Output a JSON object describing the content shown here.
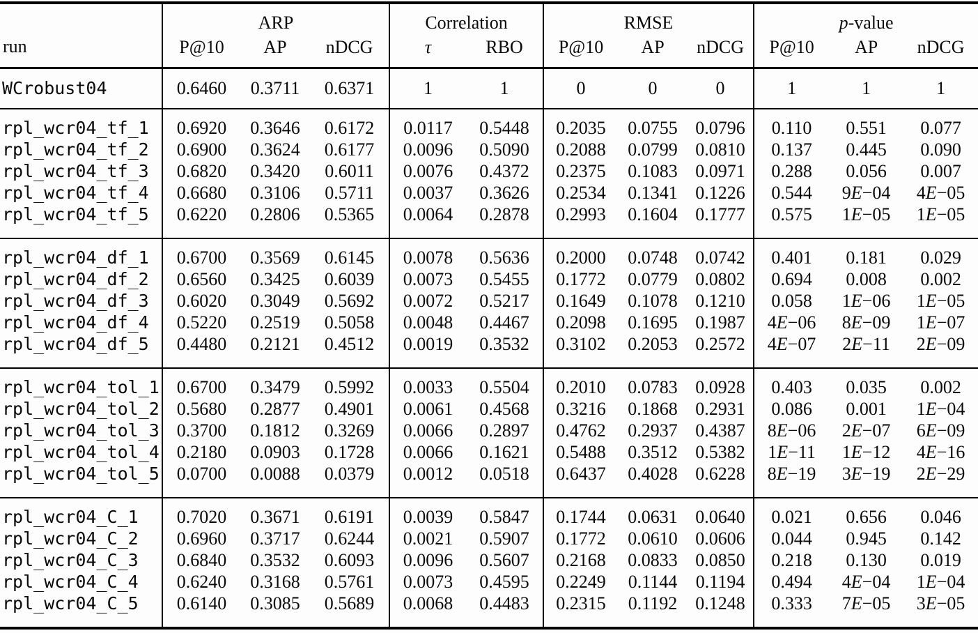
{
  "header": {
    "run_label": "run",
    "groups": [
      {
        "label": "ARP",
        "cols": [
          "P@10",
          "AP",
          "nDCG"
        ]
      },
      {
        "label": "Correlation",
        "cols": [
          "τ",
          "RBO"
        ]
      },
      {
        "label": "RMSE",
        "cols": [
          "P@10",
          "AP",
          "nDCG"
        ]
      },
      {
        "label_italic": "p",
        "label_rest": "-value",
        "cols": [
          "P@10",
          "AP",
          "nDCG"
        ]
      }
    ]
  },
  "body": {
    "baseline_rows": [
      {
        "run": "WCrobust04",
        "values": [
          "0.6460",
          "0.3711",
          "0.6371",
          "1",
          "1",
          "0",
          "0",
          "0",
          "1",
          "1",
          "1"
        ]
      }
    ],
    "groups": [
      {
        "name": "tf",
        "rows": [
          {
            "run": "rpl_wcr04_tf_1",
            "values": [
              "0.6920",
              "0.3646",
              "0.6172",
              "0.0117",
              "0.5448",
              "0.2035",
              "0.0755",
              "0.0796",
              "0.110",
              "0.551",
              "0.077"
            ]
          },
          {
            "run": "rpl_wcr04_tf_2",
            "values": [
              "0.6900",
              "0.3624",
              "0.6177",
              "0.0096",
              "0.5090",
              "0.2088",
              "0.0799",
              "0.0810",
              "0.137",
              "0.445",
              "0.090"
            ]
          },
          {
            "run": "rpl_wcr04_tf_3",
            "values": [
              "0.6820",
              "0.3420",
              "0.6011",
              "0.0076",
              "0.4372",
              "0.2375",
              "0.1083",
              "0.0971",
              "0.288",
              "0.056",
              "0.007"
            ]
          },
          {
            "run": "rpl_wcr04_tf_4",
            "values": [
              "0.6680",
              "0.3106",
              "0.5711",
              "0.0037",
              "0.3626",
              "0.2534",
              "0.1341",
              "0.1226",
              "0.544",
              "9E−04",
              "4E−05"
            ]
          },
          {
            "run": "rpl_wcr04_tf_5",
            "values": [
              "0.6220",
              "0.2806",
              "0.5365",
              "0.0064",
              "0.2878",
              "0.2993",
              "0.1604",
              "0.1777",
              "0.575",
              "1E−05",
              "1E−05"
            ]
          }
        ]
      },
      {
        "name": "df",
        "rows": [
          {
            "run": "rpl_wcr04_df_1",
            "values": [
              "0.6700",
              "0.3569",
              "0.6145",
              "0.0078",
              "0.5636",
              "0.2000",
              "0.0748",
              "0.0742",
              "0.401",
              "0.181",
              "0.029"
            ]
          },
          {
            "run": "rpl_wcr04_df_2",
            "values": [
              "0.6560",
              "0.3425",
              "0.6039",
              "0.0073",
              "0.5455",
              "0.1772",
              "0.0779",
              "0.0802",
              "0.694",
              "0.008",
              "0.002"
            ]
          },
          {
            "run": "rpl_wcr04_df_3",
            "values": [
              "0.6020",
              "0.3049",
              "0.5692",
              "0.0072",
              "0.5217",
              "0.1649",
              "0.1078",
              "0.1210",
              "0.058",
              "1E−06",
              "1E−05"
            ]
          },
          {
            "run": "rpl_wcr04_df_4",
            "values": [
              "0.5220",
              "0.2519",
              "0.5058",
              "0.0048",
              "0.4467",
              "0.2098",
              "0.1695",
              "0.1987",
              "4E−06",
              "8E−09",
              "1E−07"
            ]
          },
          {
            "run": "rpl_wcr04_df_5",
            "values": [
              "0.4480",
              "0.2121",
              "0.4512",
              "0.0019",
              "0.3532",
              "0.3102",
              "0.2053",
              "0.2572",
              "4E−07",
              "2E−11",
              "2E−09"
            ]
          }
        ]
      },
      {
        "name": "tol",
        "rows": [
          {
            "run": "rpl_wcr04_tol_1",
            "values": [
              "0.6700",
              "0.3479",
              "0.5992",
              "0.0033",
              "0.5504",
              "0.2010",
              "0.0783",
              "0.0928",
              "0.403",
              "0.035",
              "0.002"
            ]
          },
          {
            "run": "rpl_wcr04_tol_2",
            "values": [
              "0.5680",
              "0.2877",
              "0.4901",
              "0.0061",
              "0.4568",
              "0.3216",
              "0.1868",
              "0.2931",
              "0.086",
              "0.001",
              "1E−04"
            ]
          },
          {
            "run": "rpl_wcr04_tol_3",
            "values": [
              "0.3700",
              "0.1812",
              "0.3269",
              "0.0066",
              "0.2897",
              "0.4762",
              "0.2937",
              "0.4387",
              "8E−06",
              "2E−07",
              "6E−09"
            ]
          },
          {
            "run": "rpl_wcr04_tol_4",
            "values": [
              "0.2180",
              "0.0903",
              "0.1728",
              "0.0066",
              "0.1621",
              "0.5488",
              "0.3512",
              "0.5382",
              "1E−11",
              "1E−12",
              "4E−16"
            ]
          },
          {
            "run": "rpl_wcr04_tol_5",
            "values": [
              "0.0700",
              "0.0088",
              "0.0379",
              "0.0012",
              "0.0518",
              "0.6437",
              "0.4028",
              "0.6228",
              "8E−19",
              "3E−19",
              "2E−29"
            ]
          }
        ]
      },
      {
        "name": "C",
        "rows": [
          {
            "run": "rpl_wcr04_C_1",
            "values": [
              "0.7020",
              "0.3671",
              "0.6191",
              "0.0039",
              "0.5847",
              "0.1744",
              "0.0631",
              "0.0640",
              "0.021",
              "0.656",
              "0.046"
            ]
          },
          {
            "run": "rpl_wcr04_C_2",
            "values": [
              "0.6960",
              "0.3717",
              "0.6244",
              "0.0021",
              "0.5907",
              "0.1772",
              "0.0610",
              "0.0606",
              "0.044",
              "0.945",
              "0.142"
            ]
          },
          {
            "run": "rpl_wcr04_C_3",
            "values": [
              "0.6840",
              "0.3532",
              "0.6093",
              "0.0096",
              "0.5607",
              "0.2168",
              "0.0833",
              "0.0850",
              "0.218",
              "0.130",
              "0.019"
            ]
          },
          {
            "run": "rpl_wcr04_C_4",
            "values": [
              "0.6240",
              "0.3168",
              "0.5761",
              "0.0073",
              "0.4595",
              "0.2249",
              "0.1144",
              "0.1194",
              "0.494",
              "4E−04",
              "1E−04"
            ]
          },
          {
            "run": "rpl_wcr04_C_5",
            "values": [
              "0.6140",
              "0.3085",
              "0.5689",
              "0.0068",
              "0.4483",
              "0.2315",
              "0.1192",
              "0.1248",
              "0.333",
              "7E−05",
              "3E−05"
            ]
          }
        ]
      }
    ]
  }
}
